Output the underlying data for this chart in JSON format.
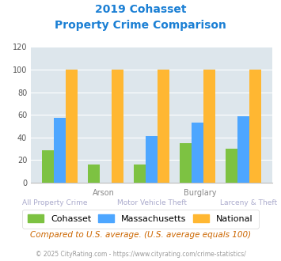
{
  "title_line1": "2019 Cohasset",
  "title_line2": "Property Crime Comparison",
  "categories": [
    "All Property Crime",
    "Arson",
    "Motor Vehicle Theft",
    "Burglary",
    "Larceny & Theft"
  ],
  "top_labels": [
    "",
    "Arson",
    "",
    "Burglary",
    ""
  ],
  "bottom_labels": [
    "All Property Crime",
    "",
    "Motor Vehicle Theft",
    "",
    "Larceny & Theft"
  ],
  "cohasset": [
    29,
    16,
    16,
    35,
    30
  ],
  "massachusetts": [
    57,
    0,
    41,
    53,
    59
  ],
  "national": [
    100,
    100,
    100,
    100,
    100
  ],
  "ylim": [
    0,
    120
  ],
  "yticks": [
    0,
    20,
    40,
    60,
    80,
    100,
    120
  ],
  "color_cohasset": "#7dc242",
  "color_massachusetts": "#4da6ff",
  "color_national": "#ffb732",
  "bg_color": "#dde6ec",
  "legend_labels": [
    "Cohasset",
    "Massachusetts",
    "National"
  ],
  "footnote1": "Compared to U.S. average. (U.S. average equals 100)",
  "footnote2": "© 2025 CityRating.com - https://www.cityrating.com/crime-statistics/",
  "title_color": "#1a7fd4",
  "footnote1_color": "#cc6600",
  "footnote2_color": "#999999",
  "top_label_color": "#888888",
  "bottom_label_color": "#aaaacc"
}
